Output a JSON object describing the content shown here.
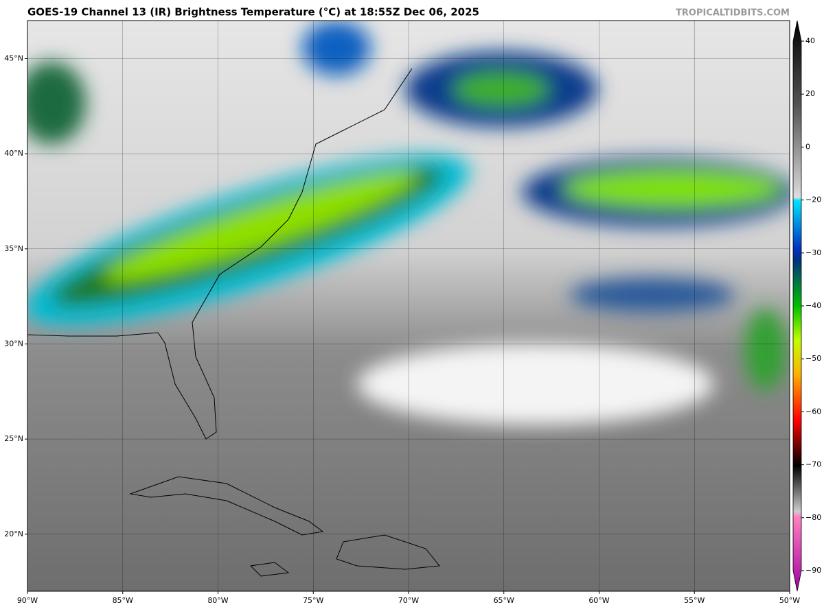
{
  "title": "GOES-19 Channel 13 (IR) Brightness Temperature (°C) at 18:55Z Dec 06, 2025",
  "watermark": "TROPICALTIDBITS.COM",
  "map": {
    "xlim": [
      -90,
      -50
    ],
    "ylim": [
      17,
      47
    ],
    "lat_ticks": [
      {
        "value": 45,
        "label": "45°N"
      },
      {
        "value": 40,
        "label": "40°N"
      },
      {
        "value": 35,
        "label": "35°N"
      },
      {
        "value": 30,
        "label": "30°N"
      },
      {
        "value": 25,
        "label": "25°N"
      },
      {
        "value": 20,
        "label": "20°N"
      }
    ],
    "lon_ticks": [
      {
        "value": -90,
        "label": "90°W"
      },
      {
        "value": -85,
        "label": "85°W"
      },
      {
        "value": -80,
        "label": "80°W"
      },
      {
        "value": -75,
        "label": "75°W"
      },
      {
        "value": -70,
        "label": "70°W"
      },
      {
        "value": -65,
        "label": "65°W"
      },
      {
        "value": -60,
        "label": "60°W"
      },
      {
        "value": -55,
        "label": "55°W"
      },
      {
        "value": -50,
        "label": "50°W"
      }
    ]
  },
  "colorbar": {
    "ticks": [
      40,
      20,
      0,
      {
        "value": -20,
        "label": "−20"
      },
      {
        "value": -30,
        "label": "−30"
      },
      {
        "value": -40,
        "label": "−40"
      },
      {
        "value": -50,
        "label": "−50"
      },
      {
        "value": -60,
        "label": "−60"
      },
      {
        "value": -70,
        "label": "−70"
      },
      {
        "value": -80,
        "label": "−80"
      },
      {
        "value": -90,
        "label": "−90"
      }
    ]
  }
}
